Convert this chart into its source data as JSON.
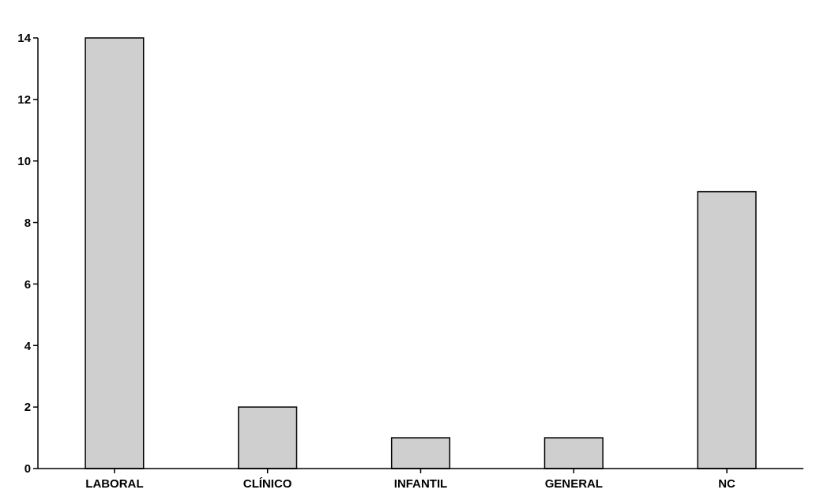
{
  "chart_data": {
    "type": "bar",
    "categories": [
      "LABORAL",
      "CLÍNICO",
      "INFANTIL",
      "GENERAL",
      "NC"
    ],
    "values": [
      14,
      2,
      1,
      1,
      9
    ],
    "color": "#cfcfcf",
    "ylim": [
      0,
      14
    ],
    "yticks": [
      0,
      2,
      4,
      6,
      8,
      10,
      12,
      14
    ],
    "grid": false
  }
}
